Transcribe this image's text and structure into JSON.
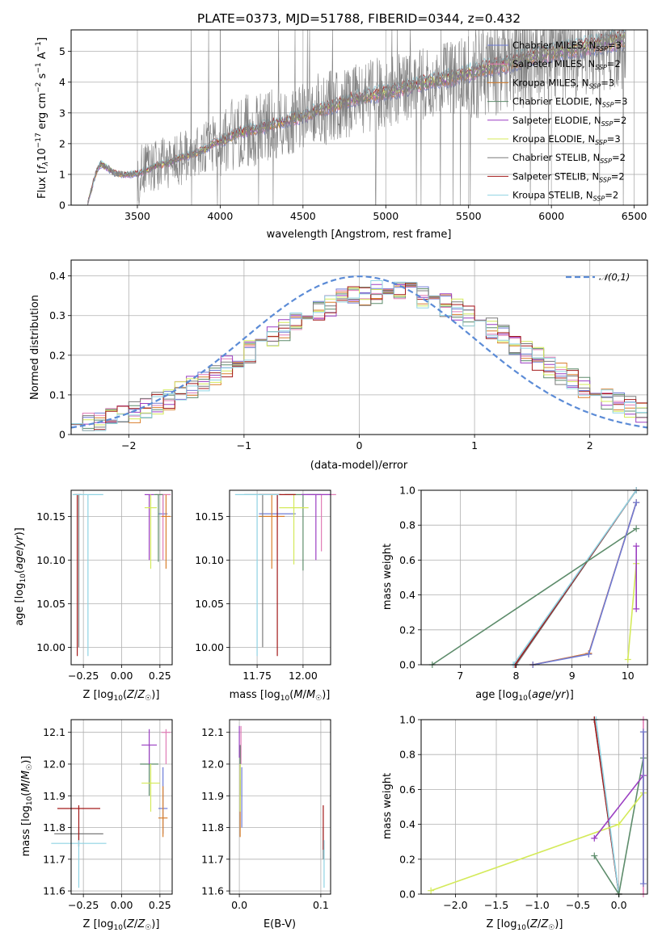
{
  "figure": {
    "title": "PLATE=0373, MJD=51788, FIBERID=0344, z=0.432"
  },
  "legend_entries": [
    {
      "name": "Chabrier MILES, N_SSP=3",
      "color": "#6d7bd6"
    },
    {
      "name": "Salpeter MILES, N_SSP=2",
      "color": "#e07cb6"
    },
    {
      "name": "Kroupa MILES, N_SSP=3",
      "color": "#d97f2c"
    },
    {
      "name": "Chabrier ELODIE, N_SSP=3",
      "color": "#5d8c6b"
    },
    {
      "name": "Salpeter ELODIE, N_SSP=2",
      "color": "#9b3fc2"
    },
    {
      "name": "Kroupa ELODIE, N_SSP=3",
      "color": "#d4ea5a"
    },
    {
      "name": "Chabrier STELIB, N_SSP=2",
      "color": "#7a7a7a"
    },
    {
      "name": "Salpeter STELIB, N_SSP=2",
      "color": "#a31a1a"
    },
    {
      "name": "Kroupa STELIB, N_SSP=2",
      "color": "#8fd3e3"
    }
  ],
  "chart_data": [
    {
      "id": "spectrum",
      "type": "line",
      "title": "PLATE=0373, MJD=51788, FIBERID=0344, z=0.432",
      "xlabel": "wavelength [Angstrom, rest frame]",
      "ylabel": "Flux [fλ10^-17 erg cm^-2 s^-1 A^-1]",
      "xlim": [
        3100,
        6580
      ],
      "ylim": [
        0,
        5.7
      ],
      "xticks": [
        3500,
        4000,
        4500,
        5000,
        5500,
        6000,
        6500
      ],
      "yticks": [
        0,
        1,
        2,
        3,
        4,
        5
      ],
      "data_color": "#808080",
      "model_anchors": {
        "x": [
          3200,
          3250,
          3280,
          3320,
          3360,
          3400,
          3450,
          3500,
          3560,
          3620,
          3680,
          3740,
          3800,
          3860,
          3920,
          3970,
          4000,
          4050,
          4100,
          4200,
          4300,
          4400,
          4500,
          4600,
          4700,
          4800,
          4900,
          5000,
          5100,
          5200,
          5300,
          5400,
          5500,
          5600,
          5700,
          5800,
          5900,
          6000,
          6100,
          6200,
          6300,
          6400,
          6450
        ],
        "y": [
          0.05,
          1.05,
          1.35,
          1.2,
          1.05,
          1.0,
          1.0,
          1.02,
          1.15,
          1.3,
          1.35,
          1.5,
          1.6,
          1.7,
          1.85,
          2.05,
          2.05,
          2.2,
          2.35,
          2.45,
          2.6,
          2.75,
          2.9,
          3.1,
          3.25,
          3.45,
          3.55,
          3.65,
          3.8,
          3.95,
          4.05,
          4.15,
          4.3,
          4.45,
          4.55,
          4.7,
          4.85,
          4.95,
          5.05,
          5.15,
          5.25,
          5.35,
          5.4
        ]
      }
    },
    {
      "id": "residual-histogram",
      "type": "line",
      "xlabel": "(data-model)/error",
      "ylabel": "Normed distribution",
      "xlim": [
        -2.5,
        2.5
      ],
      "ylim": [
        0,
        0.44
      ],
      "xticks": [
        -2,
        -1,
        0,
        1,
        2
      ],
      "yticks": [
        0.0,
        0.1,
        0.2,
        0.3,
        0.4
      ],
      "gaussian": {
        "name": "𝒩(0,1)",
        "mean": 0,
        "sigma": 1,
        "color": "#5b8bd6"
      },
      "bin_edges_range": [
        -2.5,
        2.5
      ],
      "n_bins": 50
    },
    {
      "id": "age-vs-Z",
      "type": "scatter",
      "xlabel": "Z [log10(Z/Z☉)]",
      "ylabel": "age [log10(age/yr)]",
      "xlim": [
        -0.33,
        0.33
      ],
      "ylim": [
        9.98,
        10.18
      ],
      "xticks": [
        -0.25,
        0.0,
        0.25
      ],
      "xticklabels": [
        "−0.25",
        "0.00",
        "0.25"
      ],
      "yticks": [
        10.0,
        10.05,
        10.1,
        10.15
      ],
      "yticklabels": [
        "10.00",
        "10.05",
        "10.10",
        "10.15"
      ],
      "points": [
        {
          "series": 0,
          "x": 0.27,
          "y": 10.153,
          "xerr": 0.03,
          "ylo": 10.15,
          "yhi": 10.175
        },
        {
          "series": 1,
          "x": 0.27,
          "y": 10.175,
          "xerr": 0.05,
          "ylo": 10.1,
          "yhi": 10.175
        },
        {
          "series": 2,
          "x": 0.29,
          "y": 10.15,
          "xerr": 0.03,
          "ylo": 10.09,
          "yhi": 10.175
        },
        {
          "series": 3,
          "x": 0.24,
          "y": 10.175,
          "xerr": 0.03,
          "ylo": 10.098,
          "yhi": 10.175
        },
        {
          "series": 4,
          "x": 0.18,
          "y": 10.175,
          "xerr": 0.03,
          "ylo": 10.1,
          "yhi": 10.175
        },
        {
          "series": 5,
          "x": 0.19,
          "y": 10.16,
          "xerr": 0.04,
          "ylo": 10.09,
          "yhi": 10.175
        },
        {
          "series": 6,
          "x": -0.28,
          "y": 10.175,
          "xerr": 0.02,
          "ylo": 10.0,
          "yhi": 10.175
        },
        {
          "series": 7,
          "x": -0.29,
          "y": 10.175,
          "xerr": 0.02,
          "ylo": 9.99,
          "yhi": 10.175
        },
        {
          "series": 8,
          "x": -0.22,
          "y": 10.175,
          "xerr": 0.1,
          "ylo": 9.99,
          "yhi": 10.175
        }
      ]
    },
    {
      "id": "age-vs-mass",
      "type": "scatter",
      "xlabel": "mass [log10(M/M☉)]",
      "ylabel": "",
      "xlim": [
        11.6,
        12.15
      ],
      "ylim": [
        9.98,
        10.18
      ],
      "xticks": [
        11.75,
        12.0
      ],
      "xticklabels": [
        "11.75",
        "12.00"
      ],
      "yticks": [
        10.0,
        10.05,
        10.1,
        10.15
      ],
      "yticklabels": [
        "10.00",
        "10.05",
        "10.10",
        "10.15"
      ],
      "points": [
        {
          "series": 0,
          "x": 11.86,
          "y": 10.153,
          "xerr": 0.1,
          "ylo": 10.15,
          "yhi": 10.175
        },
        {
          "series": 1,
          "x": 12.1,
          "y": 10.175,
          "xerr": 0.08,
          "ylo": 10.11,
          "yhi": 10.175
        },
        {
          "series": 2,
          "x": 11.83,
          "y": 10.15,
          "xerr": 0.07,
          "ylo": 10.09,
          "yhi": 10.175
        },
        {
          "series": 3,
          "x": 12.0,
          "y": 10.175,
          "xerr": 0.1,
          "ylo": 10.088,
          "yhi": 10.175
        },
        {
          "series": 4,
          "x": 12.07,
          "y": 10.175,
          "xerr": 0.08,
          "ylo": 10.1,
          "yhi": 10.175
        },
        {
          "series": 5,
          "x": 11.95,
          "y": 10.16,
          "xerr": 0.08,
          "ylo": 10.095,
          "yhi": 10.175
        },
        {
          "series": 6,
          "x": 11.78,
          "y": 10.175,
          "xerr": 0.1,
          "ylo": 10.0,
          "yhi": 10.175
        },
        {
          "series": 7,
          "x": 11.86,
          "y": 10.175,
          "xerr": 0.1,
          "ylo": 9.99,
          "yhi": 10.175
        },
        {
          "series": 8,
          "x": 11.75,
          "y": 10.175,
          "xerr": 0.12,
          "ylo": 9.99,
          "yhi": 10.175
        }
      ]
    },
    {
      "id": "weight-vs-age",
      "type": "line",
      "xlabel": "age [log10(age/yr)]",
      "ylabel": "mass weight",
      "xlim": [
        6.3,
        10.35
      ],
      "ylim": [
        0,
        1
      ],
      "xticks": [
        7,
        8,
        9,
        10
      ],
      "yticks": [
        0.0,
        0.2,
        0.4,
        0.6,
        0.8,
        1.0
      ],
      "yticklabels": [
        "0.0",
        "0.2",
        "0.4",
        "0.6",
        "0.8",
        "1.0"
      ],
      "series": [
        {
          "series": 6,
          "x": [
            8.0,
            10.15
          ],
          "y": [
            0.0,
            1.0
          ]
        },
        {
          "series": 7,
          "x": [
            7.98,
            10.15
          ],
          "y": [
            0.0,
            1.0
          ]
        },
        {
          "series": 8,
          "x": [
            7.95,
            10.15
          ],
          "y": [
            0.0,
            1.0
          ]
        },
        {
          "series": 3,
          "x": [
            6.5,
            10.15
          ],
          "y": [
            0.0,
            0.78
          ]
        },
        {
          "series": 1,
          "x": [
            8.3,
            9.3,
            10.15
          ],
          "y": [
            0.0,
            0.065,
            0.93
          ]
        },
        {
          "series": 2,
          "x": [
            8.3,
            9.3,
            10.15
          ],
          "y": [
            0.0,
            0.065,
            0.93
          ]
        },
        {
          "series": 0,
          "x": [
            8.3,
            9.3,
            10.15
          ],
          "y": [
            0.0,
            0.06,
            0.93
          ]
        },
        {
          "series": 5,
          "x": [
            10.0,
            10.15
          ],
          "y": [
            0.03,
            0.58
          ]
        },
        {
          "series": 4,
          "x": [
            10.15,
            10.15
          ],
          "y": [
            0.32,
            0.68
          ]
        }
      ]
    },
    {
      "id": "mass-vs-Z",
      "type": "scatter",
      "xlabel": "Z [log10(Z/Z☉)]",
      "ylabel": "mass [log10(M/M☉)]",
      "xlim": [
        -0.33,
        0.33
      ],
      "ylim": [
        11.59,
        12.14
      ],
      "xticks": [
        -0.25,
        0.0,
        0.25
      ],
      "xticklabels": [
        "−0.25",
        "0.00",
        "0.25"
      ],
      "yticks": [
        11.6,
        11.7,
        11.8,
        11.9,
        12.0,
        12.1
      ],
      "yticklabels": [
        "11.6",
        "11.7",
        "11.8",
        "11.9",
        "12.0",
        "12.1"
      ],
      "points": [
        {
          "series": 0,
          "x": 0.27,
          "y": 11.86,
          "xerr": 0.03,
          "ylo": 11.78,
          "yhi": 11.99
        },
        {
          "series": 1,
          "x": 0.29,
          "y": 12.1,
          "xerr": 0.03,
          "ylo": 12.0,
          "yhi": 12.11
        },
        {
          "series": 2,
          "x": 0.27,
          "y": 11.83,
          "xerr": 0.03,
          "ylo": 11.77,
          "yhi": 11.93
        },
        {
          "series": 3,
          "x": 0.18,
          "y": 12.0,
          "xerr": 0.06,
          "ylo": 11.9,
          "yhi": 12.06
        },
        {
          "series": 4,
          "x": 0.18,
          "y": 12.06,
          "xerr": 0.05,
          "ylo": 12.0,
          "yhi": 12.11
        },
        {
          "series": 5,
          "x": 0.19,
          "y": 11.94,
          "xerr": 0.06,
          "ylo": 11.85,
          "yhi": 12.0
        },
        {
          "series": 6,
          "x": -0.28,
          "y": 11.78,
          "xerr": 0.16,
          "ylo": 11.76,
          "yhi": 11.8
        },
        {
          "series": 7,
          "x": -0.28,
          "y": 11.86,
          "xerr": 0.14,
          "ylo": 11.74,
          "yhi": 11.87
        },
        {
          "series": 8,
          "x": -0.28,
          "y": 11.75,
          "xerr": 0.18,
          "ylo": 11.61,
          "yhi": 11.76
        }
      ]
    },
    {
      "id": "mass-vs-EBV",
      "type": "scatter",
      "xlabel": "E(B-V)",
      "ylabel": "",
      "xlim": [
        -0.012,
        0.112
      ],
      "ylim": [
        11.59,
        12.14
      ],
      "xticks": [
        0.0,
        0.1
      ],
      "xticklabels": [
        "0.0",
        "0.1"
      ],
      "yticks": [
        11.6,
        11.7,
        11.8,
        11.9,
        12.0,
        12.1
      ],
      "yticklabels": [
        "11.6",
        "11.7",
        "11.8",
        "11.9",
        "12.0",
        "12.1"
      ],
      "points": [
        {
          "series": 0,
          "x": 0.003,
          "ylo": 11.8,
          "yhi": 11.99
        },
        {
          "series": 1,
          "x": 0.002,
          "ylo": 12.0,
          "yhi": 12.12
        },
        {
          "series": 2,
          "x": 0.001,
          "ylo": 11.77,
          "yhi": 11.95
        },
        {
          "series": 3,
          "x": 0.001,
          "ylo": 11.9,
          "yhi": 12.06
        },
        {
          "series": 4,
          "x": 0.0,
          "ylo": 12.02,
          "yhi": 12.12
        },
        {
          "series": 5,
          "x": 0.001,
          "ylo": 11.85,
          "yhi": 12.0
        },
        {
          "series": 6,
          "x": 0.103,
          "ylo": 11.7,
          "yhi": 11.8
        },
        {
          "series": 7,
          "x": 0.103,
          "ylo": 11.73,
          "yhi": 11.87
        },
        {
          "series": 8,
          "x": 0.104,
          "ylo": 11.61,
          "yhi": 11.76
        }
      ]
    },
    {
      "id": "weight-vs-Z",
      "type": "line",
      "xlabel": "Z [log10(Z/Z☉)]",
      "ylabel": "mass weight",
      "xlim": [
        -2.42,
        0.35
      ],
      "ylim": [
        0,
        1
      ],
      "xticks": [
        -2.0,
        -1.5,
        -1.0,
        -0.5,
        0.0
      ],
      "xticklabels": [
        "−2.0",
        "−1.5",
        "−1.0",
        "−0.5",
        "0.0"
      ],
      "yticks": [
        0.0,
        0.2,
        0.4,
        0.6,
        0.8,
        1.0
      ],
      "yticklabels": [
        "0.0",
        "0.2",
        "0.4",
        "0.6",
        "0.8",
        "1.0"
      ],
      "series": [
        {
          "series": 6,
          "x": [
            -0.3,
            0.0
          ],
          "y": [
            1.0,
            0.0
          ]
        },
        {
          "series": 7,
          "x": [
            -0.3,
            0.0
          ],
          "y": [
            1.0,
            0.0
          ]
        },
        {
          "series": 8,
          "x": [
            -0.28,
            0.0
          ],
          "y": [
            1.0,
            0.0
          ]
        },
        {
          "series": 3,
          "x": [
            -0.3,
            0.0,
            0.3
          ],
          "y": [
            0.22,
            0.0,
            0.78
          ]
        },
        {
          "series": 5,
          "x": [
            -2.3,
            0.0,
            0.3
          ],
          "y": [
            0.02,
            0.4,
            0.58
          ]
        },
        {
          "series": 4,
          "x": [
            -0.3,
            0.3
          ],
          "y": [
            0.32,
            0.68
          ]
        },
        {
          "series": 1,
          "x": [
            0.3,
            0.3
          ],
          "y": [
            0.0,
            1.0
          ]
        },
        {
          "series": 2,
          "x": [
            0.3,
            0.3
          ],
          "y": [
            0.06,
            0.93
          ]
        },
        {
          "series": 0,
          "x": [
            0.3,
            0.3
          ],
          "y": [
            0.06,
            0.93
          ]
        }
      ]
    }
  ]
}
